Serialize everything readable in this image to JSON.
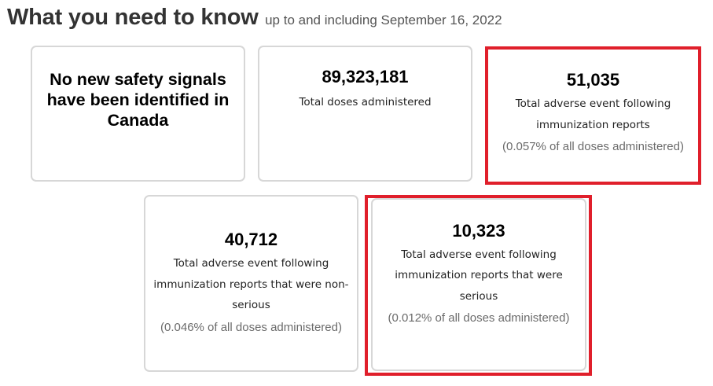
{
  "heading": {
    "title": "What you need to know",
    "subtitle": "up to and including September 16, 2022"
  },
  "cards": {
    "safety": {
      "text": "No new safety signals have been identified in Canada"
    },
    "doses": {
      "value": "89,323,181",
      "label": "Total doses administered"
    },
    "total_reports": {
      "value": "51,035",
      "label_line1": "Total adverse event following",
      "label_line2": "immunization reports",
      "percent": "(0.057% of all doses administered)"
    },
    "nonserious": {
      "value": "40,712",
      "label_line1": "Total adverse event following",
      "label_line2": "immunization reports that were non-",
      "label_line3": "serious",
      "percent": "(0.046% of all doses administered)"
    },
    "serious": {
      "value": "10,323",
      "label_line1": "Total adverse event following",
      "label_line2": "immunization reports that were serious",
      "percent": "(0.012% of all doses administered)"
    }
  },
  "colors": {
    "highlight": "#e01f2b",
    "card_border": "#d7d7d7",
    "title": "#333333"
  }
}
